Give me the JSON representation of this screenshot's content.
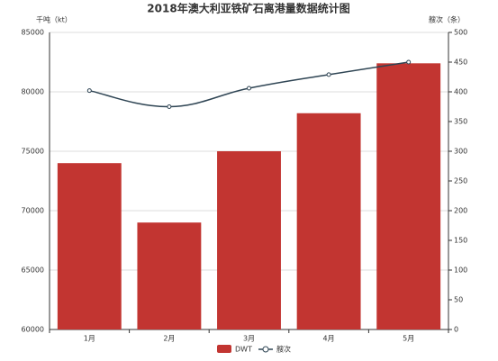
{
  "chart_data": {
    "type": "bar-line",
    "title": "2018年澳大利亚铁矿石离港量数据统计图",
    "y_label": "千吨（kt）",
    "y2_label": "艘次（条）",
    "categories": [
      "1月",
      "2月",
      "3月",
      "4月",
      "5月"
    ],
    "series": [
      {
        "name": "DWT",
        "type": "bar",
        "color": "#c23531",
        "values": [
          74000,
          69000,
          75000,
          78200,
          82400
        ]
      },
      {
        "name": "艘次",
        "type": "line",
        "color": "#2f4554",
        "axis": "y2",
        "values": [
          402,
          375,
          406,
          429,
          450
        ]
      }
    ],
    "ylim": [
      60000,
      85000
    ],
    "yticks": [
      60000,
      65000,
      70000,
      75000,
      80000,
      85000
    ],
    "y2lim": [
      0,
      500
    ],
    "y2ticks": [
      0,
      50,
      100,
      150,
      200,
      250,
      300,
      350,
      400,
      450,
      500
    ],
    "grid": true
  }
}
